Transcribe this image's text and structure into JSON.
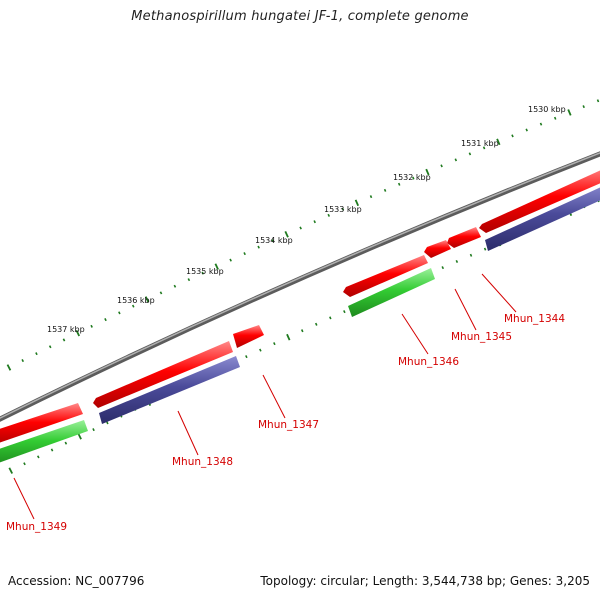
{
  "title": "Methanospirillum hungatei JF-1, complete genome",
  "footer": {
    "accession": "Accession: NC_007796",
    "summary": "Topology: circular; Length: 3,544,738 bp; Genes: 3,205"
  },
  "colors": {
    "backbone": "#8a8a8a",
    "forward_strand_gene": "#ff0000",
    "reverse_strand_gene": "#33cc33",
    "cds_feature": "#4b4b9a",
    "tick": "#1f7a1f",
    "label": "#d40000",
    "kbp_label": "#111111"
  },
  "kbp_ticks": [
    "1530 kbp",
    "1531 kbp",
    "1532 kbp",
    "1533 kbp",
    "1534 kbp",
    "1535 kbp",
    "1536 kbp",
    "1537 kbp"
  ],
  "genes": [
    "Mhun_1344",
    "Mhun_1345",
    "Mhun_1346",
    "Mhun_1347",
    "Mhun_1348",
    "Mhun_1349"
  ]
}
